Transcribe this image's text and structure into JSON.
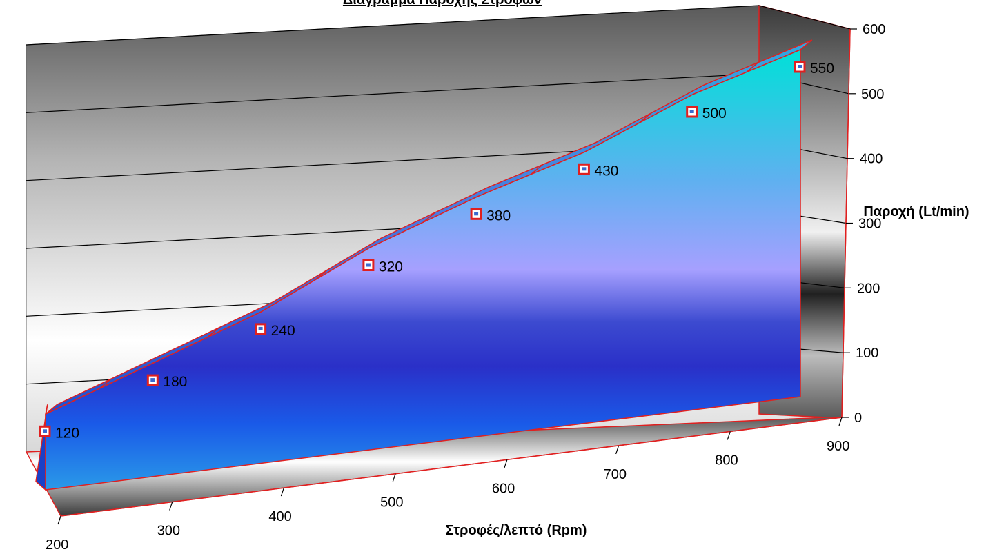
{
  "chart_data": {
    "type": "area",
    "title": "Διάγραμμα Παροχής Στροφών",
    "xlabel": "Στροφές/λεπτό  (Rpm)",
    "ylabel": "Παροχή  (Lt/min)",
    "x_ticks": [
      "200",
      "300",
      "400",
      "500",
      "600",
      "700",
      "800",
      "900"
    ],
    "y_ticks": [
      "0",
      "100",
      "200",
      "300",
      "400",
      "500",
      "600"
    ],
    "ylim": [
      0,
      600
    ],
    "grid": true,
    "series": [
      {
        "values": [
          120,
          180,
          240,
          320,
          380,
          430,
          500,
          550
        ],
        "labels": [
          "120",
          "180",
          "240",
          "320",
          "380",
          "430",
          "500",
          "550"
        ]
      }
    ],
    "colors": {
      "edge": "#e02020",
      "fill_top": "#00e0d8",
      "fill_mid": "#9aa0ff",
      "fill_band": "#2a30c8",
      "fill_bottom": "#1a7ae0"
    }
  }
}
